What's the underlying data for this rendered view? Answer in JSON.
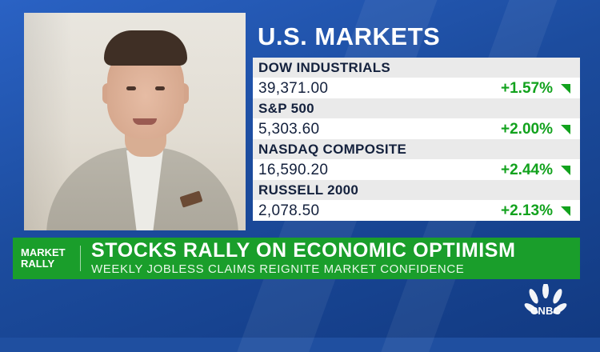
{
  "markets": {
    "title": "U.S. MARKETS",
    "indices": [
      {
        "name": "DOW INDUSTRIALS",
        "value": "39,371.00",
        "change": "+1.57%",
        "direction": "up"
      },
      {
        "name": "S&P 500",
        "value": "5,303.60",
        "change": "+2.00%",
        "direction": "up"
      },
      {
        "name": "NASDAQ COMPOSITE",
        "value": "16,590.20",
        "change": "+2.44%",
        "direction": "up"
      },
      {
        "name": "RUSSELL 2000",
        "value": "2,078.50",
        "change": "+2.13%",
        "direction": "up"
      }
    ]
  },
  "lower_third": {
    "tag_line1": "MARKET",
    "tag_line2": "RALLY",
    "headline": "STOCKS RALLY ON ECONOMIC OPTIMISM",
    "subhead": "WEEKLY JOBLESS CLAIMS REIGNITE MARKET CONFIDENCE"
  },
  "logo": {
    "text": "CNBC",
    "icon": "peacock-icon"
  },
  "colors": {
    "background": "#1f4fa0",
    "lower_third": "#1a9e2b",
    "gain": "#12a21d",
    "panel_text": "#14213d"
  }
}
